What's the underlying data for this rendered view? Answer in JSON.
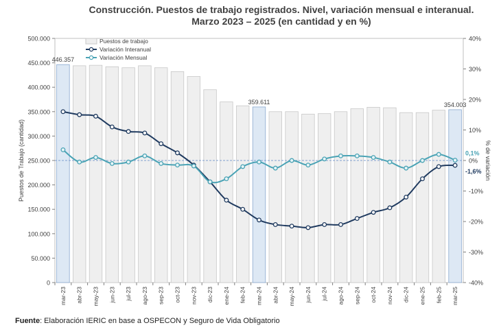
{
  "title_line1": "Construcción. Puestos de trabajo registrados. Nivel, variación mensual e interanual.",
  "title_line2": "Marzo 2023 – 2025 (en cantidad y en %)",
  "source_label": "Fuente",
  "source_text": ": Elaboración IERIC en base a OSPECON y Seguro de Vida Obligatorio",
  "chart_data": {
    "type": "bar",
    "title": "Construcción. Puestos de trabajo registrados. Nivel, variación mensual e interanual.",
    "subtitle": "Marzo 2023 – 2025 (en cantidad y en %)",
    "ylabel": "Puestos de Trabajo (cantidad)",
    "y2label": "% de variación",
    "ylim": [
      0,
      500000
    ],
    "y2lim": [
      -40,
      40
    ],
    "yticks": [
      "0",
      "50.000",
      "100.000",
      "150.000",
      "200.000",
      "250.000",
      "300.000",
      "350.000",
      "400.000",
      "450.000",
      "500.000"
    ],
    "y2ticks": [
      "-40%",
      "-30%",
      "-20%",
      "-10%",
      "0%",
      "10%",
      "20%",
      "30%",
      "40%"
    ],
    "categories": [
      "mar-23",
      "abr-23",
      "may-23",
      "jun-23",
      "jul-23",
      "ago-23",
      "sep-23",
      "oct-23",
      "nov-23",
      "dic-23",
      "ene-24",
      "feb-24",
      "mar-24",
      "abr-24",
      "may-24",
      "jun-24",
      "jul-24",
      "ago-24",
      "sep-24",
      "oct-24",
      "nov-24",
      "dic-24",
      "ene-25",
      "feb-25",
      "mar-25"
    ],
    "highlighted": [
      "mar-23",
      "mar-24",
      "mar-25"
    ],
    "series": [
      {
        "name": "Puestos de trabajo",
        "type": "bar",
        "axis": "left",
        "color": "#efefef",
        "highlight_color": "#dde8f4",
        "values": [
          446357,
          444000,
          445000,
          442000,
          440000,
          444000,
          440000,
          432000,
          422000,
          395000,
          370000,
          362000,
          359611,
          350000,
          350000,
          345000,
          346000,
          350000,
          356000,
          359000,
          358000,
          348000,
          348000,
          353000,
          354003
        ]
      },
      {
        "name": "Variación Interanual",
        "type": "line",
        "axis": "right",
        "color": "#1f3a5f",
        "values": [
          16.0,
          15.0,
          14.5,
          11.0,
          9.5,
          9.0,
          5.5,
          2.5,
          -1.5,
          -7.0,
          -13.0,
          -16.0,
          -19.5,
          -21.0,
          -21.5,
          -22.0,
          -21.0,
          -21.0,
          -19.0,
          -17.0,
          -15.5,
          -12.0,
          -6.0,
          -2.0,
          -1.6
        ]
      },
      {
        "name": "Variación Mensual",
        "type": "line",
        "axis": "right",
        "color": "#4aa3b5",
        "values": [
          3.5,
          -0.5,
          1.0,
          -1.0,
          -0.5,
          1.5,
          -1.0,
          -1.5,
          -1.8,
          -7.0,
          -6.0,
          -2.0,
          -0.5,
          -2.5,
          0.0,
          -1.5,
          0.5,
          1.5,
          1.5,
          1.0,
          -0.5,
          -2.5,
          0.0,
          2.0,
          0.1
        ]
      }
    ],
    "data_labels": [
      {
        "category": "mar-23",
        "text": "446.357"
      },
      {
        "category": "mar-24",
        "text": "359.611"
      },
      {
        "category": "mar-25",
        "text": "354.003"
      }
    ],
    "end_labels": [
      {
        "series": "Variación Mensual",
        "text": "0,1%"
      },
      {
        "series": "Variación Interanual",
        "text": "-1,6%"
      }
    ],
    "zero_line": true,
    "legend": "top-left"
  }
}
